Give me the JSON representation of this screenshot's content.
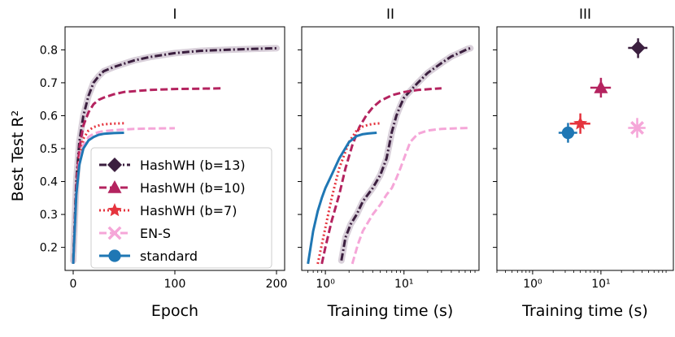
{
  "figure": {
    "ylabel": "Best Test R²",
    "legend_placement": "lower-left of panel I"
  },
  "legend": [
    {
      "label": "HashWH (b=13)",
      "color": "#3b1f3f",
      "marker": "diamond",
      "dash": "dashdot"
    },
    {
      "label": "HashWH (b=10)",
      "color": "#b4235f",
      "marker": "triangle",
      "dash": "dashed"
    },
    {
      "label": "HashWH (b=7)",
      "color": "#e5343e",
      "marker": "star",
      "dash": "dotted"
    },
    {
      "label": "EN-S",
      "color": "#f5a6d8",
      "marker": "x",
      "dash": "dashed"
    },
    {
      "label": "standard",
      "color": "#1f77b4",
      "marker": "circle",
      "dash": "solid"
    }
  ],
  "chart_data": [
    {
      "type": "line",
      "title": "I",
      "xlabel": "Epoch",
      "ylabel": "Best Test R²",
      "xlim": [
        -8,
        208
      ],
      "ylim": [
        0.13,
        0.87
      ],
      "xticks": [
        0,
        100,
        200
      ],
      "yticks": [
        0.2,
        0.3,
        0.4,
        0.5,
        0.6,
        0.7,
        0.8
      ],
      "ytick_labels": [
        "0.2",
        "0.3",
        "0.4",
        "0.5",
        "0.6",
        "0.7",
        "0.8"
      ],
      "xtick_labels": [
        "0",
        "100",
        "200"
      ],
      "series": [
        {
          "name": "HashWH (b=13)",
          "x": [
            0,
            3,
            6,
            10,
            15,
            20,
            25,
            30,
            40,
            50,
            60,
            75,
            100,
            125,
            150,
            175,
            200
          ],
          "y": [
            0.16,
            0.4,
            0.52,
            0.6,
            0.66,
            0.7,
            0.72,
            0.735,
            0.748,
            0.758,
            0.768,
            0.778,
            0.79,
            0.797,
            0.8,
            0.803,
            0.805
          ]
        },
        {
          "name": "HashWH (b=10)",
          "x": [
            0,
            3,
            6,
            10,
            15,
            20,
            25,
            30,
            40,
            50,
            75,
            100,
            125,
            145
          ],
          "y": [
            0.15,
            0.38,
            0.5,
            0.57,
            0.61,
            0.635,
            0.648,
            0.655,
            0.665,
            0.672,
            0.678,
            0.681,
            0.682,
            0.683
          ]
        },
        {
          "name": "HashWH (b=7)",
          "x": [
            0,
            3,
            6,
            10,
            15,
            20,
            25,
            30,
            40,
            50
          ],
          "y": [
            0.15,
            0.37,
            0.47,
            0.53,
            0.555,
            0.565,
            0.57,
            0.574,
            0.576,
            0.577
          ]
        },
        {
          "name": "EN-S",
          "x": [
            0,
            3,
            6,
            10,
            15,
            20,
            25,
            30,
            40,
            50,
            60,
            75,
            100
          ],
          "y": [
            0.15,
            0.36,
            0.46,
            0.51,
            0.535,
            0.545,
            0.55,
            0.553,
            0.556,
            0.558,
            0.56,
            0.561,
            0.562
          ]
        },
        {
          "name": "standard",
          "x": [
            0,
            3,
            6,
            10,
            15,
            20,
            25,
            30,
            40,
            50
          ],
          "y": [
            0.15,
            0.36,
            0.45,
            0.5,
            0.525,
            0.535,
            0.542,
            0.545,
            0.547,
            0.548
          ]
        }
      ]
    },
    {
      "type": "line",
      "title": "II",
      "xlabel": "Training time (s)",
      "xscale": "log",
      "xlim": [
        0.5,
        90
      ],
      "ylim": [
        0.13,
        0.87
      ],
      "xticks": [
        1,
        10
      ],
      "xtick_labels": [
        "10⁰",
        "10¹"
      ],
      "series": [
        {
          "name": "HashWH (b=13)",
          "x": [
            1.6,
            1.8,
            2.1,
            2.5,
            3.0,
            4.0,
            5.0,
            6.0,
            7.0,
            8.0,
            9.0,
            10,
            15,
            20,
            30,
            40,
            50,
            65,
            70
          ],
          "y": [
            0.16,
            0.23,
            0.27,
            0.3,
            0.34,
            0.38,
            0.42,
            0.47,
            0.55,
            0.6,
            0.63,
            0.655,
            0.7,
            0.73,
            0.76,
            0.78,
            0.79,
            0.803,
            0.805
          ]
        },
        {
          "name": "HashWH (b=10)",
          "x": [
            0.9,
            1.0,
            1.2,
            1.5,
            1.8,
            2.2,
            2.7,
            3.3,
            4.0,
            5.0,
            7.0,
            10,
            15,
            25,
            30
          ],
          "y": [
            0.15,
            0.2,
            0.28,
            0.36,
            0.44,
            0.51,
            0.565,
            0.6,
            0.625,
            0.645,
            0.662,
            0.672,
            0.678,
            0.682,
            0.683
          ]
        },
        {
          "name": "HashWH (b=7)",
          "x": [
            0.8,
            1.0,
            1.2,
            1.5,
            2.0,
            2.5,
            3.0,
            3.5,
            4.0,
            4.5,
            5.0
          ],
          "y": [
            0.15,
            0.26,
            0.35,
            0.44,
            0.52,
            0.555,
            0.567,
            0.572,
            0.575,
            0.576,
            0.577
          ]
        },
        {
          "name": "EN-S",
          "x": [
            2.2,
            2.6,
            3.0,
            4.0,
            5.0,
            6.0,
            7.0,
            8.0,
            9.0,
            10,
            12,
            15,
            20,
            30,
            50,
            70
          ],
          "y": [
            0.15,
            0.21,
            0.25,
            0.3,
            0.33,
            0.36,
            0.38,
            0.41,
            0.44,
            0.47,
            0.52,
            0.545,
            0.555,
            0.56,
            0.562,
            0.563
          ]
        },
        {
          "name": "standard",
          "x": [
            0.6,
            0.7,
            0.8,
            0.9,
            1.0,
            1.2,
            1.5,
            2.0,
            2.5,
            3.0,
            3.5,
            4.0,
            4.5
          ],
          "y": [
            0.15,
            0.25,
            0.31,
            0.35,
            0.38,
            0.42,
            0.47,
            0.52,
            0.538,
            0.544,
            0.546,
            0.547,
            0.548
          ]
        }
      ]
    },
    {
      "type": "scatter",
      "title": "III",
      "xlabel": "Training time (s)",
      "xscale": "log",
      "xlim": [
        0.3,
        115
      ],
      "ylim": [
        0.13,
        0.87
      ],
      "xticks": [
        1,
        10
      ],
      "xtick_labels": [
        "10⁰",
        "10¹"
      ],
      "points": [
        {
          "name": "HashWH (b=13)",
          "x": 35,
          "y": 0.806,
          "xerr": [
            25,
            48
          ],
          "yerr": [
            0.775,
            0.835
          ]
        },
        {
          "name": "HashWH (b=10)",
          "x": 10,
          "y": 0.685,
          "xerr": [
            7,
            14
          ],
          "yerr": [
            0.655,
            0.715
          ]
        },
        {
          "name": "HashWH (b=7)",
          "x": 5,
          "y": 0.576,
          "xerr": [
            3.5,
            7
          ],
          "yerr": [
            0.545,
            0.607
          ]
        },
        {
          "name": "EN-S",
          "x": 34,
          "y": 0.563,
          "xerr": [
            25,
            45
          ],
          "yerr": [
            0.533,
            0.593
          ]
        },
        {
          "name": "standard",
          "x": 3.3,
          "y": 0.548,
          "xerr": [
            2.4,
            4.5
          ],
          "yerr": [
            0.518,
            0.578
          ]
        }
      ]
    }
  ]
}
